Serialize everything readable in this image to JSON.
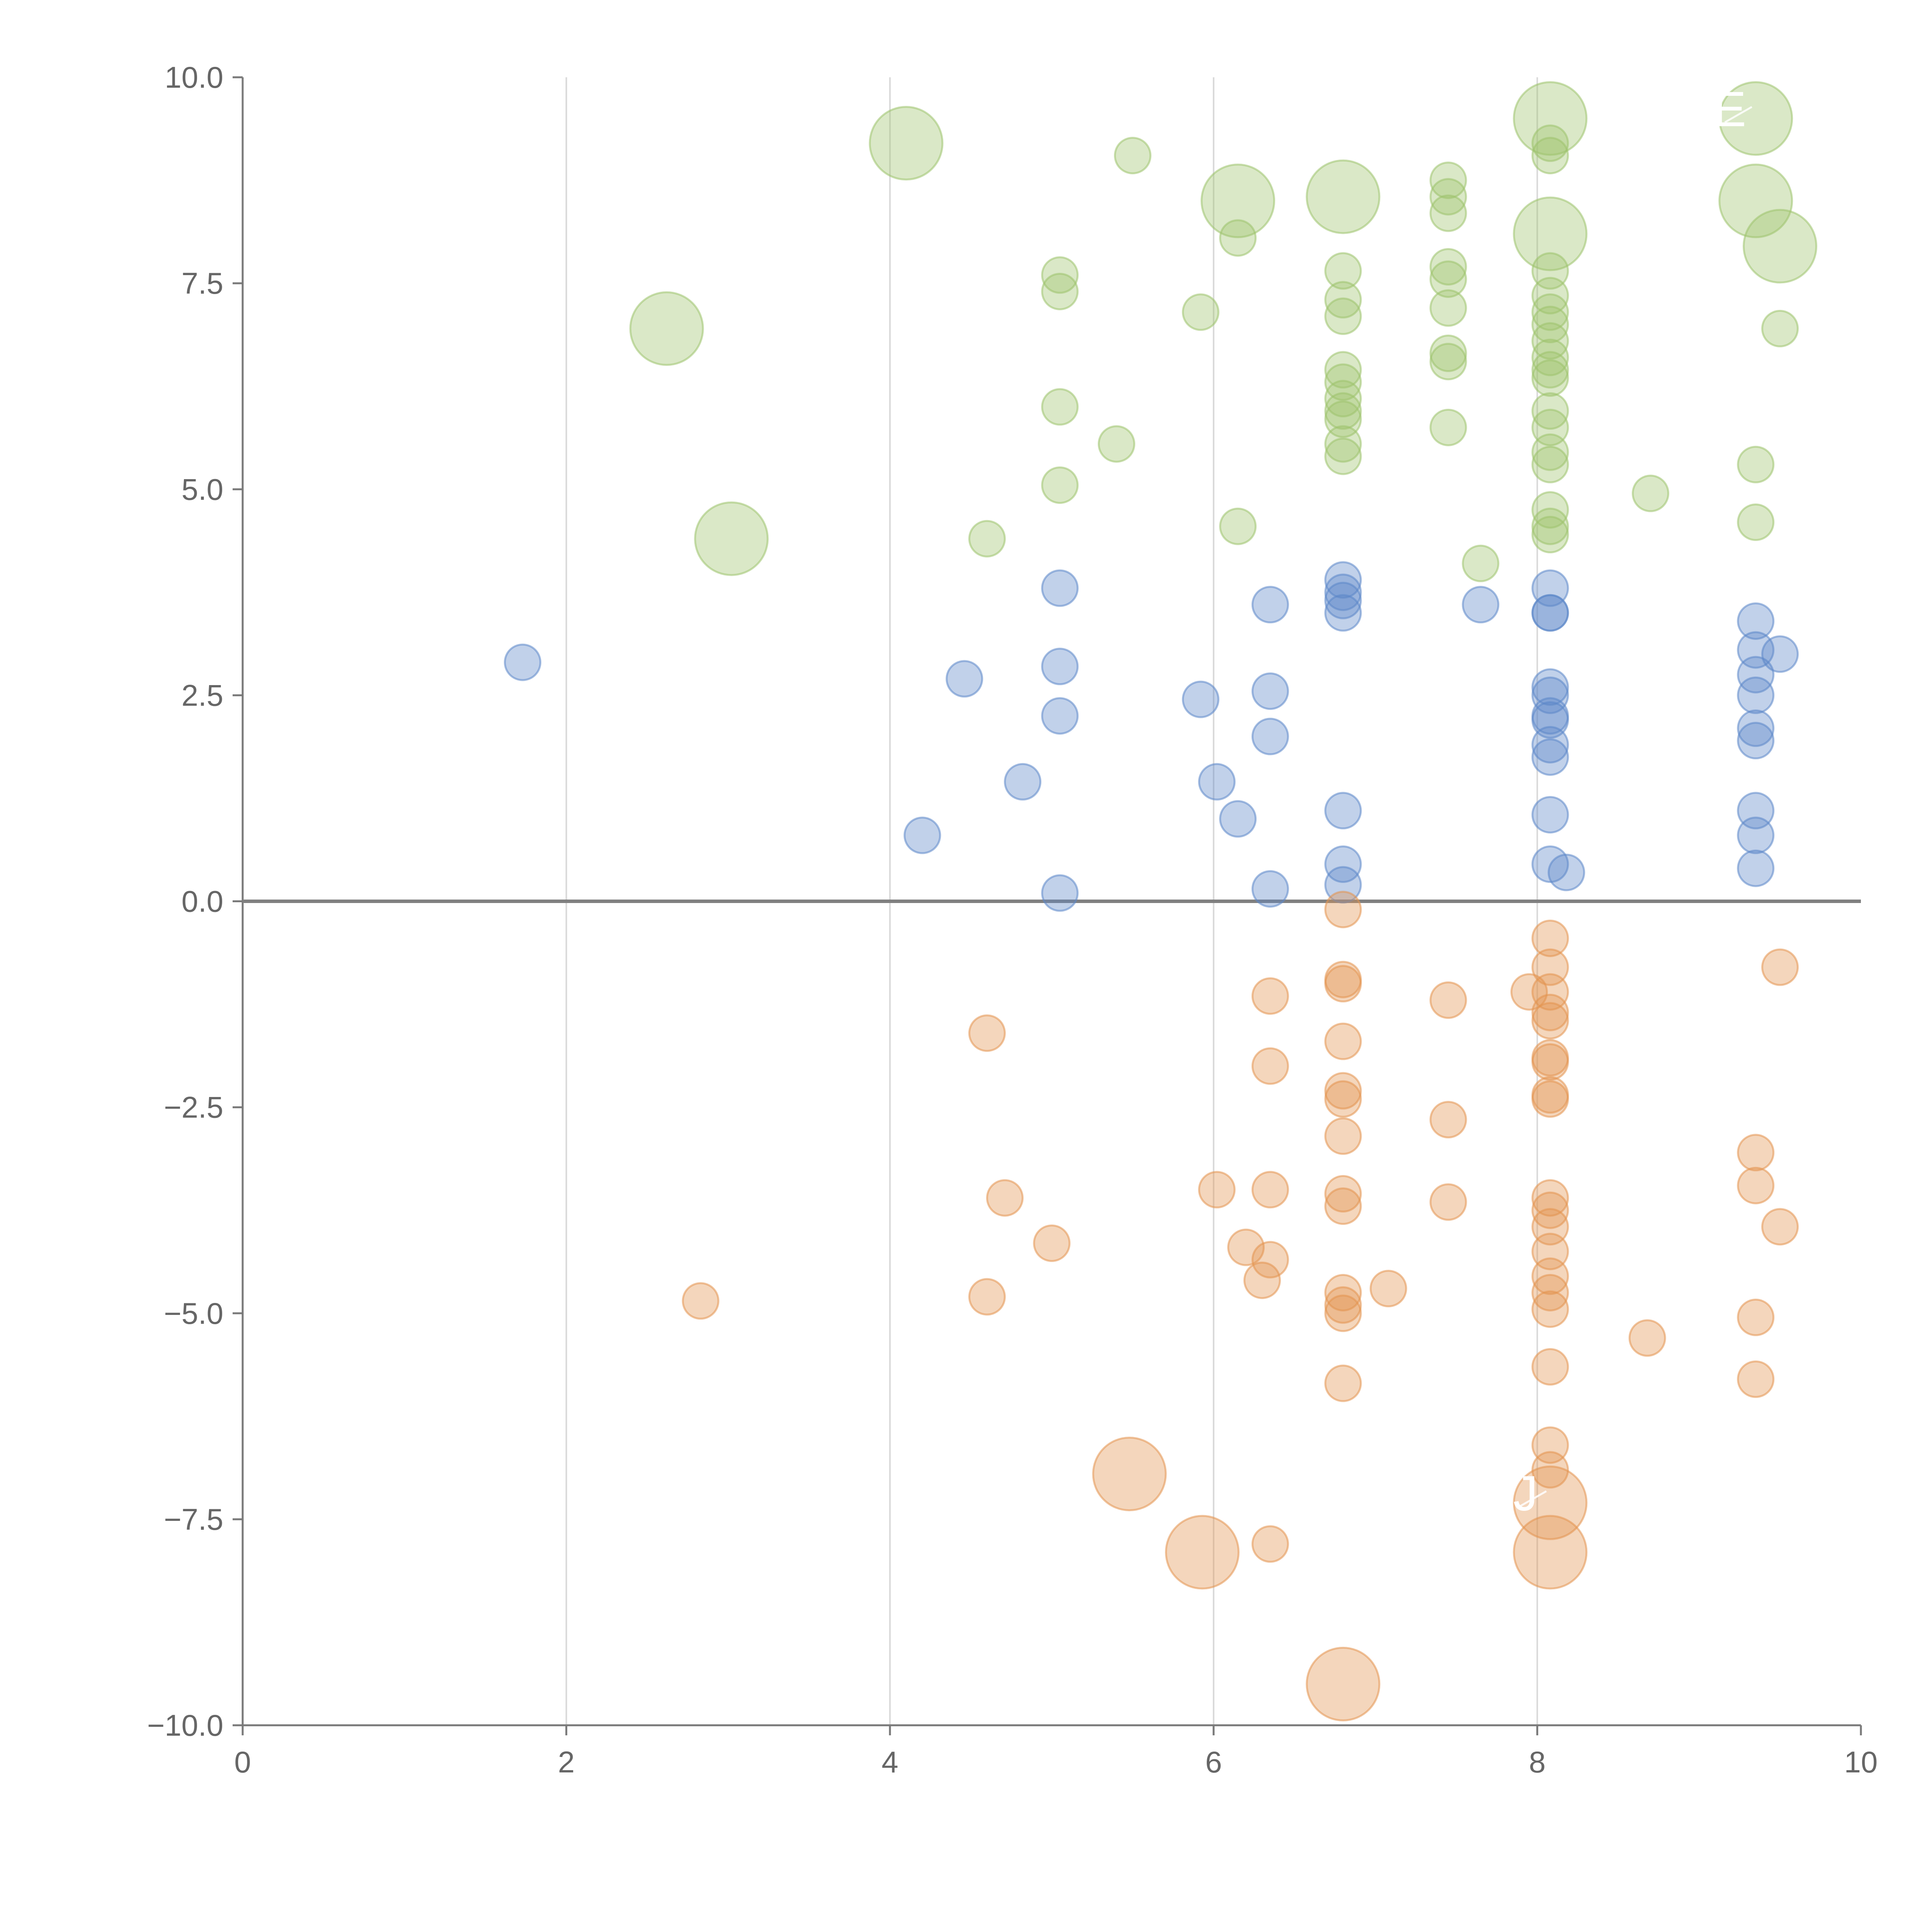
{
  "chart_data": {
    "type": "scatter",
    "title": "",
    "xlabel": "",
    "ylabel": "",
    "xlim": [
      0,
      10
    ],
    "ylim": [
      -10,
      10
    ],
    "x_ticks": [
      0,
      2,
      4,
      6,
      8,
      10
    ],
    "x_tick_labels": [
      "0",
      "2",
      "4",
      "6",
      "8",
      "10"
    ],
    "y_ticks": [
      10,
      7.5,
      5,
      2.5,
      0,
      -2.5,
      -5,
      -7.5,
      -10
    ],
    "y_tick_labels": [
      "10.0",
      "7.5",
      "5.0",
      "2.5",
      "0.0",
      "−2.5",
      "−5.0",
      "−7.5",
      "−10.0"
    ],
    "vertical_grid_x": [
      2,
      4,
      6,
      8
    ],
    "horizontal_reference_y": 0,
    "legend": "none",
    "series": [
      {
        "name": "green",
        "color": "#9dc36b",
        "points": [
          [
            4.1,
            9.2,
            2
          ],
          [
            5.5,
            9.05,
            1
          ],
          [
            6.15,
            8.5,
            2
          ],
          [
            6.15,
            8.05,
            1
          ],
          [
            6.8,
            8.55,
            2
          ],
          [
            7.45,
            8.75,
            1
          ],
          [
            7.45,
            8.55,
            1
          ],
          [
            7.45,
            8.35,
            1
          ],
          [
            7.45,
            7.7,
            1
          ],
          [
            7.45,
            7.55,
            1
          ],
          [
            7.45,
            7.2,
            1
          ],
          [
            7.45,
            6.65,
            1
          ],
          [
            7.45,
            6.55,
            1
          ],
          [
            7.45,
            5.75,
            1
          ],
          [
            8.08,
            9.5,
            2
          ],
          [
            8.08,
            9.2,
            1
          ],
          [
            8.08,
            9.05,
            1
          ],
          [
            8.08,
            8.1,
            2
          ],
          [
            8.08,
            7.65,
            1
          ],
          [
            8.08,
            7.35,
            1
          ],
          [
            8.08,
            7.15,
            1
          ],
          [
            8.08,
            7.0,
            1
          ],
          [
            8.08,
            6.8,
            1
          ],
          [
            8.08,
            6.6,
            1
          ],
          [
            8.08,
            6.45,
            1
          ],
          [
            8.08,
            6.35,
            1
          ],
          [
            8.08,
            5.95,
            1
          ],
          [
            8.08,
            5.75,
            1
          ],
          [
            8.08,
            5.45,
            1
          ],
          [
            8.08,
            5.3,
            1
          ],
          [
            8.08,
            4.75,
            1
          ],
          [
            8.08,
            4.55,
            1
          ],
          [
            8.08,
            4.45,
            1
          ],
          [
            9.35,
            9.5,
            2
          ],
          [
            9.35,
            8.5,
            2
          ],
          [
            9.5,
            7.95,
            2
          ],
          [
            9.5,
            6.95,
            1
          ],
          [
            9.35,
            5.3,
            1
          ],
          [
            9.35,
            4.6,
            1
          ],
          [
            8.7,
            4.95,
            1
          ],
          [
            7.65,
            4.1,
            1
          ],
          [
            5.05,
            7.6,
            1
          ],
          [
            5.05,
            7.4,
            1
          ],
          [
            5.05,
            6.0,
            1
          ],
          [
            5.05,
            5.05,
            1
          ],
          [
            5.4,
            5.55,
            1
          ],
          [
            5.92,
            7.15,
            1
          ],
          [
            4.6,
            4.4,
            1
          ],
          [
            6.15,
            4.55,
            1
          ],
          [
            2.62,
            6.95,
            2
          ],
          [
            3.02,
            4.4,
            2
          ],
          [
            6.8,
            7.65,
            1
          ],
          [
            6.8,
            7.3,
            1
          ],
          [
            6.8,
            7.1,
            1
          ],
          [
            6.8,
            6.45,
            1
          ],
          [
            6.8,
            6.3,
            1
          ],
          [
            6.8,
            6.1,
            1
          ],
          [
            6.8,
            5.95,
            1
          ],
          [
            6.8,
            5.85,
            1
          ],
          [
            6.8,
            5.55,
            1
          ],
          [
            6.8,
            5.4,
            1
          ]
        ]
      },
      {
        "name": "blue",
        "color": "#5b86c9",
        "points": [
          [
            1.73,
            2.9,
            1
          ],
          [
            4.2,
            0.8,
            1
          ],
          [
            4.46,
            2.7,
            1
          ],
          [
            4.82,
            1.45,
            1
          ],
          [
            5.05,
            3.8,
            1
          ],
          [
            5.05,
            2.85,
            1
          ],
          [
            5.05,
            2.25,
            1
          ],
          [
            5.05,
            0.1,
            1
          ],
          [
            5.92,
            2.45,
            1
          ],
          [
            6.02,
            1.45,
            1
          ],
          [
            6.15,
            1.0,
            1
          ],
          [
            6.35,
            3.6,
            1
          ],
          [
            6.35,
            2.55,
            1
          ],
          [
            6.35,
            2.0,
            1
          ],
          [
            6.35,
            0.15,
            1
          ],
          [
            6.8,
            3.9,
            1
          ],
          [
            6.8,
            3.75,
            1
          ],
          [
            6.8,
            3.65,
            1
          ],
          [
            6.8,
            3.5,
            1
          ],
          [
            6.8,
            1.1,
            1
          ],
          [
            6.8,
            0.45,
            1
          ],
          [
            6.8,
            0.2,
            1
          ],
          [
            7.65,
            3.6,
            1
          ],
          [
            8.08,
            3.8,
            1
          ],
          [
            8.08,
            3.5,
            1
          ],
          [
            8.08,
            3.5,
            1
          ],
          [
            8.08,
            2.6,
            1
          ],
          [
            8.08,
            2.5,
            1
          ],
          [
            8.08,
            2.25,
            1
          ],
          [
            8.08,
            2.2,
            1
          ],
          [
            8.08,
            1.9,
            1
          ],
          [
            8.08,
            1.75,
            1
          ],
          [
            8.08,
            1.05,
            1
          ],
          [
            8.08,
            0.45,
            1
          ],
          [
            8.18,
            0.35,
            1
          ],
          [
            9.35,
            3.4,
            1
          ],
          [
            9.35,
            3.05,
            1
          ],
          [
            9.5,
            3.0,
            1
          ],
          [
            9.35,
            2.75,
            1
          ],
          [
            9.35,
            2.5,
            1
          ],
          [
            9.35,
            2.1,
            1
          ],
          [
            9.35,
            1.95,
            1
          ],
          [
            9.35,
            1.1,
            1
          ],
          [
            9.35,
            0.8,
            1
          ],
          [
            9.35,
            0.4,
            1
          ]
        ]
      },
      {
        "name": "orange",
        "color": "#e3944f",
        "points": [
          [
            2.83,
            -4.85,
            1
          ],
          [
            4.6,
            -1.6,
            1
          ],
          [
            4.6,
            -4.8,
            1
          ],
          [
            4.71,
            -3.6,
            1
          ],
          [
            5.0,
            -4.15,
            1
          ],
          [
            5.48,
            -6.95,
            2
          ],
          [
            5.93,
            -7.9,
            2
          ],
          [
            6.02,
            -3.5,
            1
          ],
          [
            6.2,
            -4.2,
            1
          ],
          [
            6.3,
            -4.6,
            1
          ],
          [
            6.35,
            -1.15,
            1
          ],
          [
            6.35,
            -2.0,
            1
          ],
          [
            6.35,
            -3.5,
            1
          ],
          [
            6.35,
            -4.35,
            1
          ],
          [
            6.35,
            -7.8,
            1
          ],
          [
            6.8,
            -0.1,
            1
          ],
          [
            6.8,
            -0.95,
            1
          ],
          [
            6.8,
            -1.0,
            1
          ],
          [
            6.8,
            -1.7,
            1
          ],
          [
            6.8,
            -2.3,
            1
          ],
          [
            6.8,
            -2.4,
            1
          ],
          [
            6.8,
            -2.85,
            1
          ],
          [
            6.8,
            -3.55,
            1
          ],
          [
            6.8,
            -3.7,
            1
          ],
          [
            6.8,
            -4.75,
            1
          ],
          [
            6.8,
            -4.9,
            1
          ],
          [
            6.8,
            -5.0,
            1
          ],
          [
            6.8,
            -5.85,
            1
          ],
          [
            6.8,
            -9.5,
            2
          ],
          [
            7.08,
            -4.7,
            1
          ],
          [
            7.45,
            -1.2,
            1
          ],
          [
            7.45,
            -2.65,
            1
          ],
          [
            7.45,
            -3.65,
            1
          ],
          [
            7.95,
            -1.1,
            1
          ],
          [
            8.08,
            -0.45,
            1
          ],
          [
            8.08,
            -0.8,
            1
          ],
          [
            8.08,
            -1.1,
            1
          ],
          [
            8.08,
            -1.35,
            1
          ],
          [
            8.08,
            -1.45,
            1
          ],
          [
            8.08,
            -1.9,
            1
          ],
          [
            8.08,
            -1.95,
            1
          ],
          [
            8.08,
            -2.35,
            1
          ],
          [
            8.08,
            -2.4,
            1
          ],
          [
            8.08,
            -3.6,
            1
          ],
          [
            8.08,
            -3.75,
            1
          ],
          [
            8.08,
            -3.95,
            1
          ],
          [
            8.08,
            -4.25,
            1
          ],
          [
            8.08,
            -4.55,
            1
          ],
          [
            8.08,
            -4.75,
            1
          ],
          [
            8.08,
            -4.95,
            1
          ],
          [
            8.08,
            -5.65,
            1
          ],
          [
            8.08,
            -6.6,
            1
          ],
          [
            8.08,
            -6.9,
            1
          ],
          [
            8.08,
            -7.3,
            2
          ],
          [
            8.08,
            -7.9,
            2
          ],
          [
            8.68,
            -5.3,
            1
          ],
          [
            9.35,
            -3.05,
            1
          ],
          [
            9.35,
            -3.45,
            1
          ],
          [
            9.35,
            -5.05,
            1
          ],
          [
            9.35,
            -5.8,
            1
          ],
          [
            9.5,
            -0.8,
            1
          ],
          [
            9.5,
            -3.95,
            1
          ]
        ]
      }
    ],
    "annotations": [
      {
        "text": "SE",
        "x": 9.35,
        "y": 9.5
      },
      {
        "text": "RJ",
        "x": 8.08,
        "y": -7.3
      }
    ]
  }
}
